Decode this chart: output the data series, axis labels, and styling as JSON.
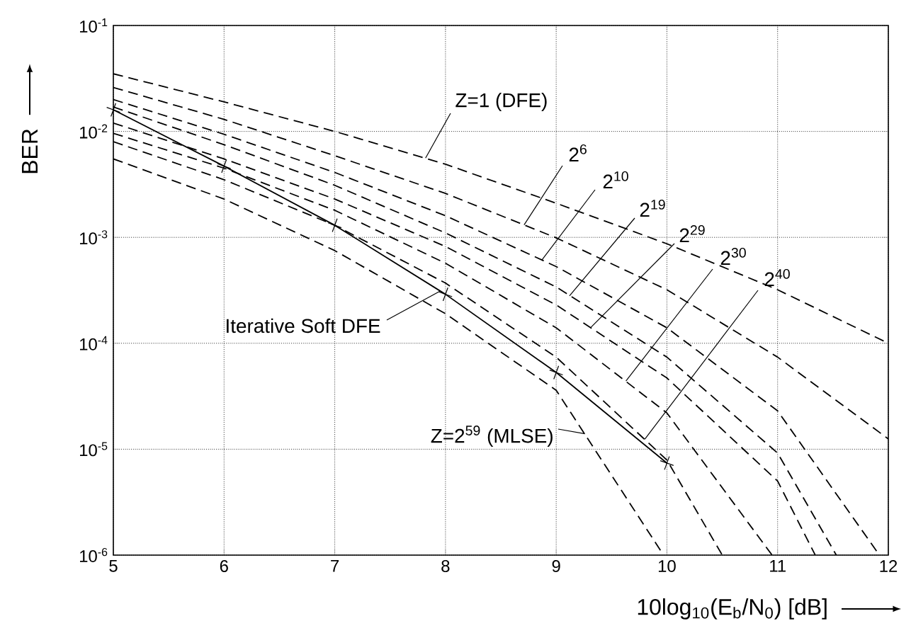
{
  "chart_data": {
    "type": "line",
    "xlabel": "10log$_{10}$(E$_{b}$/N$_{0}$)  [dB]",
    "ylabel": "BER",
    "log": "y",
    "grid": true,
    "marker": "none",
    "xlim": [
      5,
      12
    ],
    "xticks": [
      5,
      6,
      7,
      8,
      9,
      10,
      11,
      12
    ],
    "ylim": [
      1e-06,
      0.1
    ],
    "yticks": [
      {
        "value": 1e-06,
        "label": "10$^{-6}$"
      },
      {
        "value": 1e-05,
        "label": "10$^{-5}$"
      },
      {
        "value": 0.0001,
        "label": "10$^{-4}$"
      },
      {
        "value": 0.001,
        "label": "10$^{-3}$"
      },
      {
        "value": 0.01,
        "label": "10$^{-2}$"
      },
      {
        "value": 0.1,
        "label": "10$^{-1}$"
      }
    ],
    "series": [
      {
        "color": "#000000",
        "line_style": "dashed",
        "x": [
          5,
          6,
          7,
          8,
          9,
          10,
          11,
          12
        ],
        "values": [
          0.035,
          0.019,
          0.01,
          0.0049,
          0.0021,
          0.00087,
          0.00032,
          0.0001
        ]
      },
      {
        "color": "#000000",
        "line_style": "dashed",
        "x": [
          5,
          6,
          7,
          8,
          9,
          10,
          11,
          12
        ],
        "values": [
          0.026,
          0.013,
          0.0059,
          0.0026,
          0.00099,
          0.00032,
          7.4e-05,
          1.25e-05
        ]
      },
      {
        "color": "#000000",
        "line_style": "dashed",
        "x": [
          5,
          6,
          7,
          8,
          9,
          10,
          11,
          11.92
        ],
        "values": [
          0.02,
          0.0094,
          0.0041,
          0.0016,
          0.00053,
          0.00014,
          2.3e-05,
          1e-06
        ]
      },
      {
        "color": "#000000",
        "line_style": "dashed",
        "x": [
          5,
          6,
          7,
          8,
          9,
          10,
          11,
          11.53
        ],
        "values": [
          0.017,
          0.0075,
          0.0031,
          0.0011,
          0.00034,
          7.4e-05,
          9.2e-06,
          1e-06
        ]
      },
      {
        "color": "#000000",
        "line_style": "dashed",
        "x": [
          5,
          6,
          7,
          8,
          9,
          10,
          11,
          11.34
        ],
        "values": [
          0.012,
          0.0055,
          0.0023,
          0.00082,
          0.00023,
          4.7e-05,
          5e-06,
          1e-06
        ]
      },
      {
        "color": "#000000",
        "line_style": "dashed",
        "x": [
          5,
          6,
          7,
          8,
          9,
          10,
          10.95
        ],
        "values": [
          0.0096,
          0.0045,
          0.0018,
          0.00057,
          0.00014,
          2.2e-05,
          1e-06
        ]
      },
      {
        "color": "#000000",
        "line_style": "dashed",
        "x": [
          5,
          6,
          7,
          8,
          9,
          10,
          10.5
        ],
        "values": [
          0.008,
          0.0035,
          0.0013,
          0.00037,
          7.4e-05,
          7.9e-06,
          1e-06
        ]
      },
      {
        "color": "#000000",
        "line_style": "dashed",
        "x": [
          5,
          6,
          7,
          8,
          9,
          9.97
        ],
        "values": [
          0.0055,
          0.0023,
          0.00075,
          0.00019,
          3.6e-05,
          1e-06
        ]
      },
      {
        "color": "#000000",
        "line_style": "solid",
        "marker": "cross",
        "x": [
          5,
          6,
          7,
          8,
          9,
          10
        ],
        "values": [
          0.016,
          0.0047,
          0.0013,
          0.00029,
          5.3e-05,
          7.4e-06
        ]
      }
    ],
    "annotations": [
      {
        "text": "Z=1  (DFE)",
        "x": 7.82,
        "y": 0.0056
      },
      {
        "text": "2$^{6}$",
        "x": 8.71,
        "y": 0.00131
      },
      {
        "text": "2$^{10}$",
        "x": 8.87,
        "y": 0.00061
      },
      {
        "text": "2$^{19}$",
        "x": 9.12,
        "y": 0.00028
      },
      {
        "text": "2$^{29}$",
        "x": 9.31,
        "y": 0.00014
      },
      {
        "text": "2$^{30}$",
        "x": 9.63,
        "y": 4.4e-05
      },
      {
        "text": "2$^{40}$",
        "x": 9.8,
        "y": 1.24e-05
      },
      {
        "text": "Iterative  Soft  DFE",
        "x": 7.95,
        "y": 0.00031
      },
      {
        "text": "Z=2$^{59}$ (MLSE)",
        "x": 9.26,
        "y": 1.4e-05
      }
    ]
  }
}
